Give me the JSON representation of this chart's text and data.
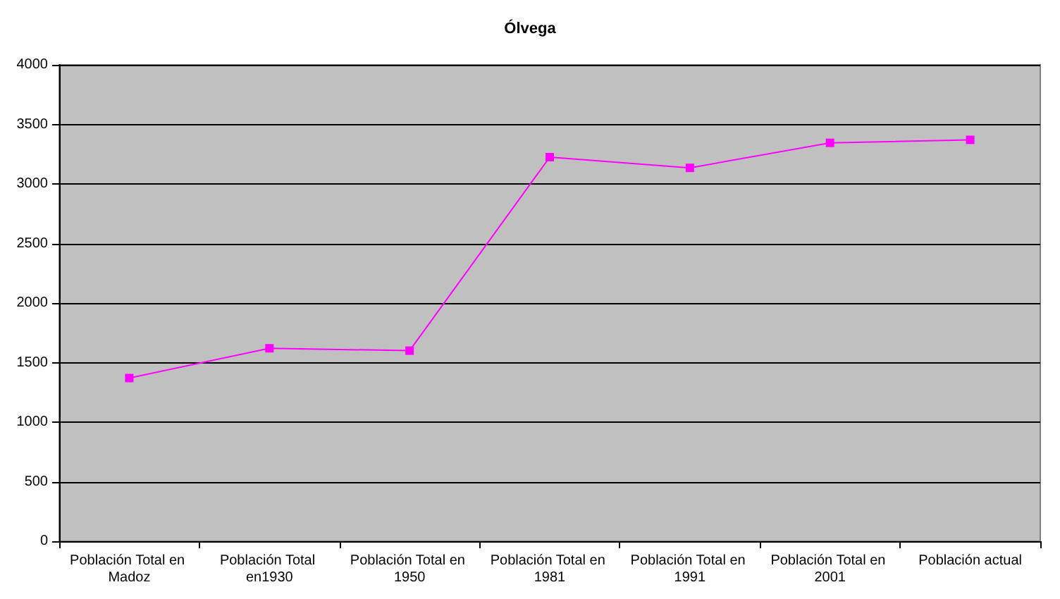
{
  "chart_data": {
    "type": "line",
    "title": "Ólvega",
    "categories": [
      "Población Total en Madoz",
      "Población Total en1930",
      "Población Total en 1950",
      "Población Total en 1981",
      "Población Total en 1991",
      "Población Total en 2001",
      "Población actual"
    ],
    "series": [
      {
        "color": "#ff00ff",
        "values": [
          1370,
          1620,
          1600,
          3225,
          3135,
          3345,
          3370
        ]
      }
    ],
    "ylim": [
      0,
      4000
    ],
    "yticks": [
      0,
      500,
      1000,
      1500,
      2000,
      2500,
      3000,
      3500,
      4000
    ],
    "grid": "y",
    "marker": "square",
    "line_style": "solid"
  }
}
